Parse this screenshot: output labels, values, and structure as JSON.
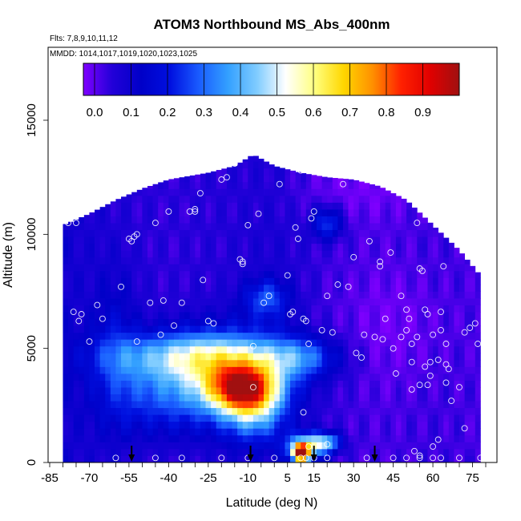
{
  "chart_data": {
    "type": "heatmap",
    "title": "ATOM3 Northbound MS_Abs_400nm",
    "subtitle_flights": "Flts: 7,8,9,10,11,12",
    "subtitle_dates": "MMDD: 1014,1017,1019,1020,1023,1025",
    "xlabel": "Latitude (deg N)",
    "ylabel": "Altitude (m)",
    "xlim": [
      -85,
      80
    ],
    "ylim": [
      0,
      17500
    ],
    "x_ticks": [
      "-85",
      "-70",
      "-55",
      "-40",
      "-25",
      "-10",
      "5",
      "15",
      "30",
      "45",
      "60",
      "75"
    ],
    "y_ticks": [
      "0",
      "5000",
      "10000",
      "15000"
    ],
    "colorbar": {
      "range": [
        0,
        1.0
      ],
      "tick_labels": [
        "0.0",
        "0.1",
        "0.2",
        "0.3",
        "0.4",
        "0.5",
        "0.6",
        "0.7",
        "0.8",
        "0.9"
      ],
      "tick_values": [
        0.0,
        0.1,
        0.2,
        0.3,
        0.4,
        0.5,
        0.6,
        0.7,
        0.8,
        0.9
      ],
      "colors": [
        "#7f00ff",
        "#2200d8",
        "#0000c8",
        "#0010e0",
        "#1a5cff",
        "#33a0ff",
        "#80ccff",
        "#ffffff",
        "#ffff80",
        "#ffd700",
        "#ff9000",
        "#ff2000",
        "#e00000",
        "#a01010"
      ]
    },
    "arrow_latitudes": [
      -54,
      -9,
      15,
      38
    ],
    "field": {
      "x_range": [
        -80,
        78
      ],
      "y_range": [
        0,
        13500
      ],
      "top_profile": [
        [
          -80,
          10400
        ],
        [
          -70,
          10900
        ],
        [
          -60,
          11500
        ],
        [
          -50,
          12000
        ],
        [
          -40,
          12400
        ],
        [
          -25,
          12700
        ],
        [
          -15,
          13000
        ],
        [
          -8,
          13500
        ],
        [
          0,
          13000
        ],
        [
          10,
          12700
        ],
        [
          20,
          12500
        ],
        [
          30,
          12400
        ],
        [
          40,
          12100
        ],
        [
          50,
          11500
        ],
        [
          60,
          10400
        ],
        [
          70,
          9300
        ],
        [
          78,
          8200
        ]
      ],
      "background": [
        [
          -80,
          0.12
        ],
        [
          -60,
          0.08
        ],
        [
          -40,
          0.07
        ],
        [
          -20,
          0.08
        ],
        [
          0,
          0.1
        ],
        [
          20,
          0.06
        ],
        [
          40,
          0.05
        ],
        [
          60,
          0.06
        ],
        [
          78,
          0.05
        ]
      ],
      "blobs": [
        {
          "x": -12,
          "y": 3300,
          "sx": 9,
          "sy": 700,
          "v": 0.62
        },
        {
          "x": -20,
          "y": 3800,
          "sx": 18,
          "sy": 1400,
          "v": 0.3
        },
        {
          "x": -30,
          "y": 4700,
          "sx": 24,
          "sy": 700,
          "v": 0.27
        },
        {
          "x": -8,
          "y": 2200,
          "sx": 8,
          "sy": 900,
          "v": 0.25
        },
        {
          "x": -45,
          "y": 3000,
          "sx": 14,
          "sy": 1300,
          "v": 0.14
        },
        {
          "x": 10,
          "y": 4600,
          "sx": 10,
          "sy": 600,
          "v": 0.2
        },
        {
          "x": 12,
          "y": 700,
          "sx": 5,
          "sy": 400,
          "v": 0.45
        },
        {
          "x": 10,
          "y": 400,
          "sx": 2,
          "sy": 250,
          "v": 0.85
        },
        {
          "x": 20,
          "y": 900,
          "sx": 4,
          "sy": 300,
          "v": 0.3
        },
        {
          "x": -3,
          "y": 7200,
          "sx": 6,
          "sy": 600,
          "v": 0.2
        },
        {
          "x": 20,
          "y": 10500,
          "sx": 4,
          "sy": 500,
          "v": 0.22
        },
        {
          "x": -60,
          "y": 5000,
          "sx": 6,
          "sy": 2500,
          "v": 0.1
        },
        {
          "x": 45,
          "y": 6000,
          "sx": 14,
          "sy": 1800,
          "v": -0.04
        },
        {
          "x": 30,
          "y": 12000,
          "sx": 20,
          "sy": 1000,
          "v": -0.04
        }
      ]
    },
    "sample_points": [
      [
        -84,
        7800
      ],
      [
        -82,
        10200
      ],
      [
        -78,
        10500
      ],
      [
        -76,
        6600
      ],
      [
        -75,
        10500
      ],
      [
        -74,
        6200
      ],
      [
        -73,
        6500
      ],
      [
        -70,
        5300
      ],
      [
        -67,
        6900
      ],
      [
        -62,
        11800
      ],
      [
        -58,
        7700
      ],
      [
        -54,
        9700
      ],
      [
        -53,
        9900
      ],
      [
        -52,
        10000
      ],
      [
        -52,
        5300
      ],
      [
        -47,
        7000
      ],
      [
        -45,
        10500
      ],
      [
        -43,
        5600
      ],
      [
        -42,
        7100
      ],
      [
        -40,
        11000
      ],
      [
        -38,
        6000
      ],
      [
        -35,
        7000
      ],
      [
        -32,
        11000
      ],
      [
        -30,
        11100
      ],
      [
        -28,
        11800
      ],
      [
        -27,
        8000
      ],
      [
        -25,
        6200
      ],
      [
        -23,
        6100
      ],
      [
        -20,
        12400
      ],
      [
        -18,
        12500
      ],
      [
        -15,
        13100
      ],
      [
        -13,
        8900
      ],
      [
        -12,
        8700
      ],
      [
        -10,
        10400
      ],
      [
        -8,
        5100
      ],
      [
        -6,
        10900
      ],
      [
        -4,
        7000
      ],
      [
        -2,
        7300
      ],
      [
        2,
        12200
      ],
      [
        5,
        8200
      ],
      [
        6,
        6500
      ],
      [
        7,
        6600
      ],
      [
        8,
        10300
      ],
      [
        9,
        9800
      ],
      [
        10,
        12800
      ],
      [
        11,
        6300
      ],
      [
        12,
        6200
      ],
      [
        13,
        5200
      ],
      [
        14,
        10700
      ],
      [
        15,
        11000
      ],
      [
        18,
        5800
      ],
      [
        20,
        7300
      ],
      [
        22,
        5700
      ],
      [
        24,
        7800
      ],
      [
        26,
        12200
      ],
      [
        28,
        7700
      ],
      [
        30,
        9000
      ],
      [
        31,
        4800
      ],
      [
        33,
        4600
      ],
      [
        34,
        5600
      ],
      [
        36,
        9700
      ],
      [
        38,
        5500
      ],
      [
        40,
        8600
      ],
      [
        40,
        8800
      ],
      [
        41,
        5400
      ],
      [
        42,
        6300
      ],
      [
        44,
        9200
      ],
      [
        45,
        5000
      ],
      [
        46,
        3900
      ],
      [
        47,
        12000
      ],
      [
        48,
        5500
      ],
      [
        48,
        7300
      ],
      [
        50,
        5800
      ],
      [
        50,
        6700
      ],
      [
        51,
        6300
      ],
      [
        52,
        5200
      ],
      [
        52,
        4400
      ],
      [
        54,
        10500
      ],
      [
        54,
        5500
      ],
      [
        55,
        8500
      ],
      [
        55,
        3400
      ],
      [
        56,
        8400
      ],
      [
        57,
        6700
      ],
      [
        57,
        4200
      ],
      [
        58,
        6500
      ],
      [
        59,
        3800
      ],
      [
        59,
        4400
      ],
      [
        60,
        5600
      ],
      [
        62,
        4500
      ],
      [
        63,
        6600
      ],
      [
        63,
        5800
      ],
      [
        64,
        8600
      ],
      [
        65,
        3500
      ],
      [
        65,
        4300
      ],
      [
        66,
        4100
      ],
      [
        67,
        2700
      ],
      [
        70,
        3300
      ],
      [
        72,
        1500
      ],
      [
        72,
        5700
      ],
      [
        74,
        5900
      ],
      [
        75,
        9000
      ],
      [
        76,
        6100
      ],
      [
        77,
        5200
      ],
      [
        -60,
        200
      ],
      [
        -45,
        200
      ],
      [
        -35,
        200
      ],
      [
        -20,
        200
      ],
      [
        -10,
        200
      ],
      [
        0,
        200
      ],
      [
        10,
        200
      ],
      [
        12,
        200
      ],
      [
        13,
        700
      ],
      [
        15,
        200
      ],
      [
        20,
        200
      ],
      [
        35,
        200
      ],
      [
        45,
        200
      ],
      [
        50,
        200
      ],
      [
        55,
        200
      ],
      [
        60,
        200
      ],
      [
        63,
        200
      ],
      [
        70,
        200
      ],
      [
        78,
        200
      ],
      [
        -8,
        3300
      ],
      [
        11,
        2200
      ],
      [
        25,
        12900
      ],
      [
        -12,
        8800
      ],
      [
        20,
        800
      ],
      [
        53,
        500
      ],
      [
        55,
        300
      ],
      [
        60,
        700
      ],
      [
        62,
        1000
      ],
      [
        58,
        3400
      ],
      [
        52,
        3200
      ],
      [
        65,
        5200
      ],
      [
        -30,
        11000
      ],
      [
        -55,
        9800
      ],
      [
        -65,
        6300
      ]
    ]
  }
}
